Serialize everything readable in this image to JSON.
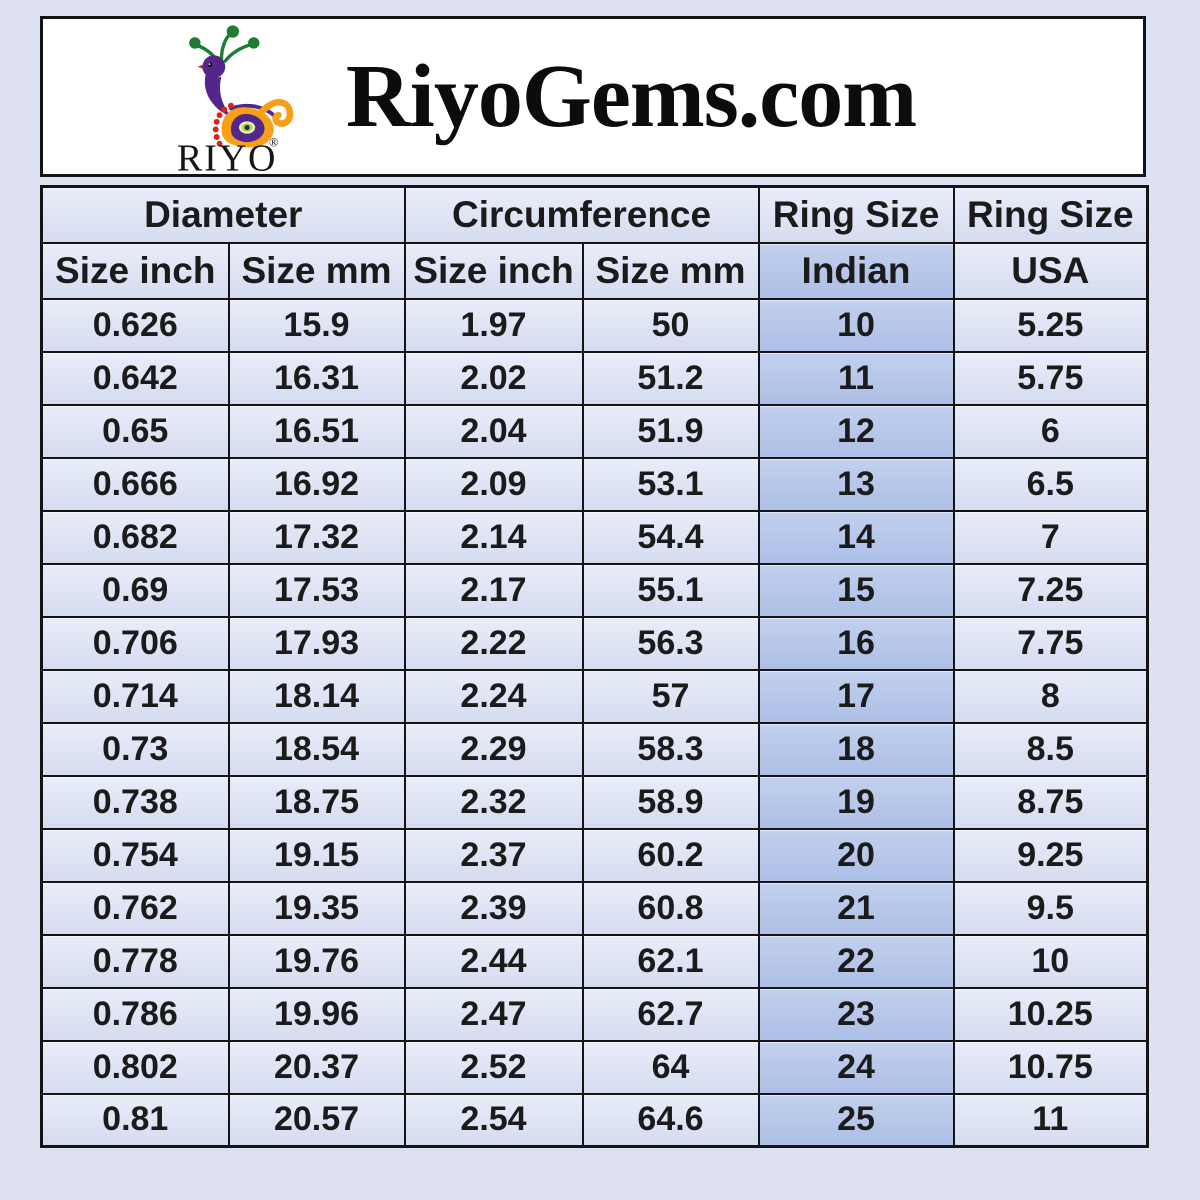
{
  "header": {
    "brand": "RiyoGems.com",
    "logo_text": "RIYO",
    "registered_mark": "®"
  },
  "table": {
    "group_headers": [
      {
        "label": "Diameter",
        "span": 2
      },
      {
        "label": "Circumference",
        "span": 2
      },
      {
        "label": "Ring Size",
        "span": 1
      },
      {
        "label": "Ring Size",
        "span": 1
      }
    ],
    "columns": [
      "Size inch",
      "Size mm",
      "Size inch",
      "Size mm",
      "Indian",
      "USA"
    ],
    "highlight_column": 4,
    "rows": [
      [
        "0.626",
        "15.9",
        "1.97",
        "50",
        "10",
        "5.25"
      ],
      [
        "0.642",
        "16.31",
        "2.02",
        "51.2",
        "11",
        "5.75"
      ],
      [
        "0.65",
        "16.51",
        "2.04",
        "51.9",
        "12",
        "6"
      ],
      [
        "0.666",
        "16.92",
        "2.09",
        "53.1",
        "13",
        "6.5"
      ],
      [
        "0.682",
        "17.32",
        "2.14",
        "54.4",
        "14",
        "7"
      ],
      [
        "0.69",
        "17.53",
        "2.17",
        "55.1",
        "15",
        "7.25"
      ],
      [
        "0.706",
        "17.93",
        "2.22",
        "56.3",
        "16",
        "7.75"
      ],
      [
        "0.714",
        "18.14",
        "2.24",
        "57",
        "17",
        "8"
      ],
      [
        "0.73",
        "18.54",
        "2.29",
        "58.3",
        "18",
        "8.5"
      ],
      [
        "0.738",
        "18.75",
        "2.32",
        "58.9",
        "19",
        "8.75"
      ],
      [
        "0.754",
        "19.15",
        "2.37",
        "60.2",
        "20",
        "9.25"
      ],
      [
        "0.762",
        "19.35",
        "2.39",
        "60.8",
        "21",
        "9.5"
      ],
      [
        "0.778",
        "19.76",
        "2.44",
        "62.1",
        "22",
        "10"
      ],
      [
        "0.786",
        "19.96",
        "2.47",
        "62.7",
        "23",
        "10.25"
      ],
      [
        "0.802",
        "20.37",
        "2.52",
        "64",
        "24",
        "10.75"
      ],
      [
        "0.81",
        "20.57",
        "2.54",
        "64.6",
        "25",
        "11"
      ]
    ]
  },
  "colors": {
    "page_bg": "#dee1f1",
    "header_box_bg": "#ffffff",
    "border": "#141414",
    "cell_top": "#e9edf9",
    "cell_bottom": "#d5dcf0",
    "indian_top": "#c3d0ee",
    "indian_bottom": "#adbfe6",
    "text": "#1b1b1b",
    "brand_text": "#0c0c0c",
    "logo_purple": "#55268a",
    "logo_green": "#1e7d33",
    "logo_orange": "#f5a018",
    "logo_red": "#e02010"
  }
}
